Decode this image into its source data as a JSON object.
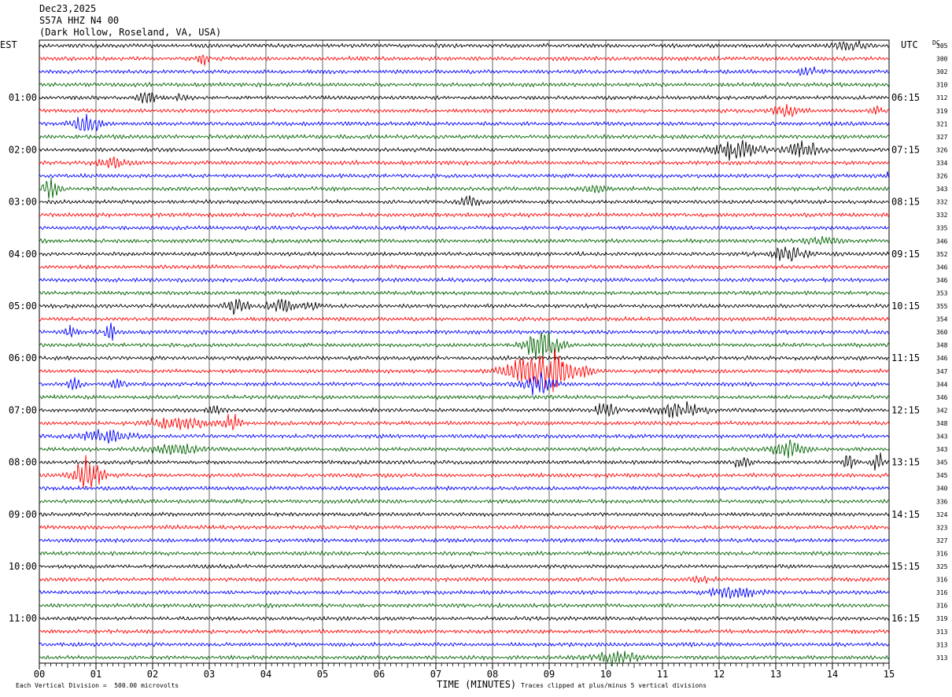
{
  "header": {
    "date": "Dec23,2025",
    "station": "S57A HHZ N4 00",
    "location": "(Dark Hollow, Roseland, VA, USA)"
  },
  "footer": {
    "scale_note": "Each Vertical Division =  500.00 microvolts",
    "clip_note": "Traces clipped at plus/minus 5 vertical divisions"
  },
  "chart_data": {
    "type": "line",
    "title": "",
    "xlabel": "TIME (MINUTES)",
    "ylabel_left": "EST",
    "ylabel_right": "UTC",
    "dc_label": "DC",
    "xlim": [
      0,
      15
    ],
    "x_ticks": [
      "00",
      "01",
      "02",
      "03",
      "04",
      "05",
      "06",
      "07",
      "08",
      "09",
      "10",
      "11",
      "12",
      "13",
      "14",
      "15"
    ],
    "left_hour_labels": [
      {
        "row": 4,
        "label": "01:00"
      },
      {
        "row": 8,
        "label": "02:00"
      },
      {
        "row": 12,
        "label": "03:00"
      },
      {
        "row": 16,
        "label": "04:00"
      },
      {
        "row": 20,
        "label": "05:00"
      },
      {
        "row": 24,
        "label": "06:00"
      },
      {
        "row": 28,
        "label": "07:00"
      },
      {
        "row": 32,
        "label": "08:00"
      },
      {
        "row": 36,
        "label": "09:00"
      },
      {
        "row": 40,
        "label": "10:00"
      },
      {
        "row": 44,
        "label": "11:00"
      }
    ],
    "right_hour_labels": [
      {
        "row": 4,
        "label": "06:15"
      },
      {
        "row": 8,
        "label": "07:15"
      },
      {
        "row": 12,
        "label": "08:15"
      },
      {
        "row": 16,
        "label": "09:15"
      },
      {
        "row": 20,
        "label": "10:15"
      },
      {
        "row": 24,
        "label": "11:15"
      },
      {
        "row": 28,
        "label": "12:15"
      },
      {
        "row": 32,
        "label": "13:15"
      },
      {
        "row": 36,
        "label": "14:15"
      },
      {
        "row": 40,
        "label": "15:15"
      },
      {
        "row": 44,
        "label": "16:15"
      }
    ],
    "trace_colors": [
      "#000000",
      "#ff0000",
      "#0000ff",
      "#006400"
    ],
    "dc_offsets": [
      305,
      300,
      302,
      310,
      312,
      319,
      321,
      327,
      326,
      334,
      326,
      343,
      332,
      332,
      335,
      346,
      352,
      346,
      346,
      353,
      355,
      354,
      360,
      348,
      346,
      347,
      344,
      346,
      342,
      348,
      343,
      343,
      345,
      345,
      340,
      336,
      324,
      323,
      327,
      316,
      325,
      316,
      316,
      316,
      319,
      313,
      313,
      313
    ],
    "events": [
      {
        "row": 0,
        "minute": 14.3,
        "amp": 1.0,
        "dur": 0.5
      },
      {
        "row": 1,
        "minute": 2.9,
        "amp": 1.4,
        "dur": 0.2
      },
      {
        "row": 2,
        "minute": 13.6,
        "amp": 0.8,
        "dur": 0.4
      },
      {
        "row": 4,
        "minute": 1.9,
        "amp": 1.5,
        "dur": 0.3
      },
      {
        "row": 4,
        "minute": 2.5,
        "amp": 0.8,
        "dur": 0.3
      },
      {
        "row": 5,
        "minute": 13.2,
        "amp": 1.0,
        "dur": 0.5
      },
      {
        "row": 5,
        "minute": 14.8,
        "amp": 1.2,
        "dur": 0.2
      },
      {
        "row": 6,
        "minute": 0.85,
        "amp": 2.2,
        "dur": 0.5
      },
      {
        "row": 8,
        "minute": 12.3,
        "amp": 2.2,
        "dur": 0.8
      },
      {
        "row": 8,
        "minute": 13.5,
        "amp": 2.0,
        "dur": 0.6
      },
      {
        "row": 9,
        "minute": 1.3,
        "amp": 1.0,
        "dur": 0.6
      },
      {
        "row": 10,
        "minute": 15.0,
        "amp": 1.2,
        "dur": 0.1
      },
      {
        "row": 11,
        "minute": 0.2,
        "amp": 1.8,
        "dur": 0.3
      },
      {
        "row": 11,
        "minute": 9.8,
        "amp": 0.8,
        "dur": 0.4
      },
      {
        "row": 12,
        "minute": 7.6,
        "amp": 1.0,
        "dur": 0.4
      },
      {
        "row": 15,
        "minute": 13.8,
        "amp": 0.8,
        "dur": 0.6
      },
      {
        "row": 16,
        "minute": 13.2,
        "amp": 1.5,
        "dur": 0.7
      },
      {
        "row": 20,
        "minute": 3.5,
        "amp": 2.2,
        "dur": 0.4
      },
      {
        "row": 20,
        "minute": 4.25,
        "amp": 1.8,
        "dur": 0.4
      },
      {
        "row": 20,
        "minute": 4.8,
        "amp": 1.0,
        "dur": 0.3
      },
      {
        "row": 22,
        "minute": 0.55,
        "amp": 2.2,
        "dur": 0.2
      },
      {
        "row": 22,
        "minute": 1.25,
        "amp": 2.8,
        "dur": 0.15
      },
      {
        "row": 23,
        "minute": 8.9,
        "amp": 3.5,
        "dur": 0.6
      },
      {
        "row": 25,
        "minute": 8.9,
        "amp": 4.5,
        "dur": 1.2
      },
      {
        "row": 26,
        "minute": 0.6,
        "amp": 1.3,
        "dur": 0.3
      },
      {
        "row": 26,
        "minute": 1.4,
        "amp": 0.8,
        "dur": 0.3
      },
      {
        "row": 26,
        "minute": 8.8,
        "amp": 2.0,
        "dur": 0.6
      },
      {
        "row": 28,
        "minute": 10.0,
        "amp": 1.6,
        "dur": 0.4
      },
      {
        "row": 28,
        "minute": 11.3,
        "amp": 1.5,
        "dur": 0.9
      },
      {
        "row": 28,
        "minute": 3.1,
        "amp": 0.8,
        "dur": 0.3
      },
      {
        "row": 29,
        "minute": 2.5,
        "amp": 1.2,
        "dur": 1.2
      },
      {
        "row": 29,
        "minute": 3.4,
        "amp": 1.6,
        "dur": 0.3
      },
      {
        "row": 30,
        "minute": 1.2,
        "amp": 1.1,
        "dur": 1.0
      },
      {
        "row": 31,
        "minute": 2.4,
        "amp": 1.2,
        "dur": 1.0
      },
      {
        "row": 31,
        "minute": 13.2,
        "amp": 1.8,
        "dur": 0.6
      },
      {
        "row": 32,
        "minute": 12.4,
        "amp": 1.2,
        "dur": 0.3
      },
      {
        "row": 32,
        "minute": 14.3,
        "amp": 2.0,
        "dur": 0.2
      },
      {
        "row": 32,
        "minute": 14.8,
        "amp": 2.2,
        "dur": 0.2
      },
      {
        "row": 33,
        "minute": 0.85,
        "amp": 3.5,
        "dur": 0.5
      },
      {
        "row": 41,
        "minute": 11.7,
        "amp": 0.6,
        "dur": 0.4
      },
      {
        "row": 42,
        "minute": 12.3,
        "amp": 1.2,
        "dur": 0.9
      },
      {
        "row": 47,
        "minute": 10.2,
        "amp": 1.2,
        "dur": 0.9
      }
    ]
  }
}
